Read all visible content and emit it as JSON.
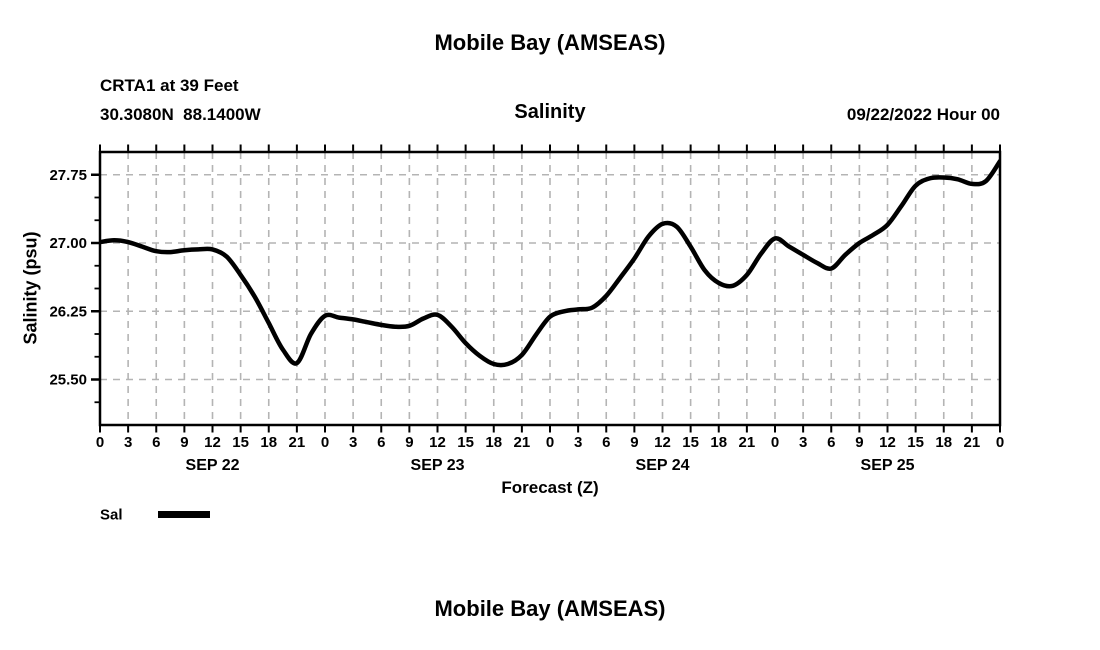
{
  "page": {
    "title_top": "Mobile Bay (AMSEAS)",
    "title_bottom": "Mobile Bay (AMSEAS)"
  },
  "header": {
    "station": "CRTA1 at 39 Feet",
    "coordinates": "30.3080N  88.1400W",
    "chart_title": "Salinity",
    "datetime": "09/22/2022 Hour 00"
  },
  "legend": {
    "label": "Sal"
  },
  "colors": {
    "line": "#000000",
    "grid": "#b4b4b4",
    "text": "#000000",
    "background": "#ffffff"
  },
  "chart_data": {
    "type": "line",
    "title": "Salinity",
    "xlabel": "Forecast (Z)",
    "ylabel": "Salinity (psu)",
    "x_unit": "hours after 09/22/2022 00Z",
    "xlim": [
      0,
      96
    ],
    "ylim": [
      25.0,
      28.0
    ],
    "grid": true,
    "legend_position": "bottom-left",
    "y_major_ticks": [
      25.5,
      26.25,
      27.0,
      27.75
    ],
    "y_tick_labels": [
      "25.50",
      "26.25",
      "27.00",
      "27.75"
    ],
    "y_minor_step": 0.25,
    "x_tick_hours": [
      0,
      3,
      6,
      9,
      12,
      15,
      18,
      21,
      24,
      27,
      30,
      33,
      36,
      39,
      42,
      45,
      48,
      51,
      54,
      57,
      60,
      63,
      66,
      69,
      72,
      75,
      78,
      81,
      84,
      87,
      90,
      93,
      96
    ],
    "x_tick_labels": [
      "0",
      "3",
      "6",
      "9",
      "12",
      "15",
      "18",
      "21",
      "0",
      "3",
      "6",
      "9",
      "12",
      "15",
      "18",
      "21",
      "0",
      "3",
      "6",
      "9",
      "12",
      "15",
      "18",
      "21",
      "0",
      "3",
      "6",
      "9",
      "12",
      "15",
      "18",
      "21",
      "0"
    ],
    "day_labels": [
      {
        "label": "SEP 22",
        "center_hour": 12
      },
      {
        "label": "SEP 23",
        "center_hour": 36
      },
      {
        "label": "SEP 24",
        "center_hour": 60
      },
      {
        "label": "SEP 25",
        "center_hour": 84
      }
    ],
    "series": [
      {
        "name": "Sal",
        "x": [
          0,
          1.5,
          3,
          4.5,
          6,
          7.5,
          9,
          10.5,
          12,
          13.5,
          15,
          16.5,
          18,
          19.5,
          21,
          22.5,
          24,
          25.5,
          27,
          28.5,
          30,
          31.5,
          33,
          34.5,
          36,
          37.5,
          39,
          40.5,
          42,
          43.5,
          45,
          46.5,
          48,
          49.5,
          51,
          52.5,
          54,
          55.5,
          57,
          58.5,
          60,
          61.5,
          63,
          64.5,
          66,
          67.5,
          69,
          70.5,
          72,
          73.5,
          75,
          76.5,
          78,
          79.5,
          81,
          82.5,
          84,
          85.5,
          87,
          88.5,
          90,
          91.5,
          93,
          94.5,
          96
        ],
        "y": [
          27.01,
          27.03,
          27.01,
          26.96,
          26.91,
          26.9,
          26.92,
          26.93,
          26.93,
          26.85,
          26.65,
          26.41,
          26.12,
          25.83,
          25.68,
          26.0,
          26.2,
          26.18,
          26.16,
          26.13,
          26.1,
          26.08,
          26.09,
          26.17,
          26.21,
          26.08,
          25.9,
          25.76,
          25.67,
          25.67,
          25.77,
          25.99,
          26.19,
          26.25,
          26.27,
          26.29,
          26.42,
          26.62,
          26.83,
          27.07,
          27.21,
          27.18,
          26.96,
          26.7,
          26.56,
          26.53,
          26.65,
          26.88,
          27.05,
          26.96,
          26.87,
          26.78,
          26.72,
          26.87,
          27.0,
          27.09,
          27.2,
          27.41,
          27.63,
          27.71,
          27.72,
          27.7,
          27.65,
          27.68,
          27.9
        ]
      }
    ]
  }
}
